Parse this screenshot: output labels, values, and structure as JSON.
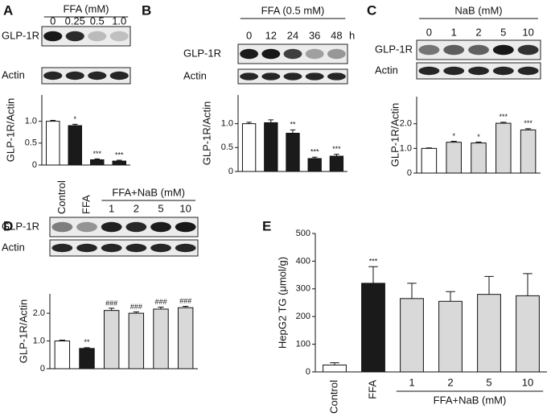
{
  "chart_data": [
    {
      "type": "bar",
      "panel_label": "A",
      "header": "FFA (mM)",
      "categories": [
        "0",
        "0.25",
        "0.5",
        "1.0"
      ],
      "row_labels": [
        "GLP-1R",
        "Actin"
      ],
      "ylabel": "GLP-1R/Actin",
      "values": [
        1.0,
        0.9,
        0.12,
        0.09
      ],
      "errors": [
        0.02,
        0.03,
        0.02,
        0.02
      ],
      "annotations": [
        null,
        "*",
        "***",
        "***"
      ],
      "colors": [
        "#ffffff",
        "#1a1a1a",
        "#1a1a1a",
        "#1a1a1a"
      ],
      "ylim": [
        0,
        1.6
      ],
      "yticks": [
        0,
        0.5,
        {
          "value": 1,
          "label": "1.0"
        }
      ]
    },
    {
      "type": "bar",
      "panel_label": "B",
      "header": "FFA (0.5 mM)",
      "lane_unit": "h",
      "categories": [
        "0",
        "12",
        "24",
        "36",
        "48"
      ],
      "row_labels": [
        "GLP-1R",
        "Actin"
      ],
      "ylabel": "GLP-1R/Actin",
      "values": [
        1.0,
        1.02,
        0.8,
        0.27,
        0.32
      ],
      "errors": [
        0.03,
        0.06,
        0.07,
        0.03,
        0.04
      ],
      "annotations": [
        null,
        null,
        "**",
        "***",
        "***"
      ],
      "colors": [
        "#ffffff",
        "#1a1a1a",
        "#1a1a1a",
        "#1a1a1a",
        "#1a1a1a"
      ],
      "ylim": [
        0,
        1.6
      ],
      "yticks": [
        0,
        0.5,
        {
          "value": 1,
          "label": "1.0"
        }
      ]
    },
    {
      "type": "bar",
      "panel_label": "C",
      "header": "NaB (mM)",
      "categories": [
        "0",
        "1",
        "2",
        "5",
        "10"
      ],
      "row_labels": [
        "GLP-1R",
        "Actin"
      ],
      "ylabel": "GLP-1R/Actin",
      "values": [
        1.0,
        1.25,
        1.22,
        2.02,
        1.75
      ],
      "errors": [
        0.02,
        0.04,
        0.04,
        0.04,
        0.05
      ],
      "annotations": [
        null,
        "*",
        "*",
        "***",
        "***"
      ],
      "colors": [
        "#ffffff",
        "#d9d9d9",
        "#d9d9d9",
        "#d9d9d9",
        "#d9d9d9"
      ],
      "ylim": [
        0,
        3.1
      ],
      "yticks": [
        0,
        {
          "value": 1,
          "label": "1.0"
        },
        {
          "value": 2,
          "label": "2.0"
        }
      ]
    },
    {
      "type": "bar",
      "panel_label": "D",
      "header": "FFA+NaB (mM)",
      "categories": [
        "Control",
        "FFA",
        "1",
        "2",
        "5",
        "10"
      ],
      "row_labels": [
        "GLP-1R",
        "Actin"
      ],
      "ylabel": "GLP-1R/Actin",
      "values": [
        1.0,
        0.73,
        2.1,
        2.0,
        2.15,
        2.2
      ],
      "errors": [
        0.03,
        0.03,
        0.08,
        0.05,
        0.07,
        0.05
      ],
      "annotations": [
        null,
        "**",
        "###",
        "###",
        "###",
        "###"
      ],
      "colors": [
        "#ffffff",
        "#1a1a1a",
        "#d9d9d9",
        "#d9d9d9",
        "#d9d9d9",
        "#d9d9d9"
      ],
      "ylim": [
        0,
        2.7
      ],
      "yticks": [
        0,
        {
          "value": 1,
          "label": "1.0"
        },
        {
          "value": 2,
          "label": "2.0"
        }
      ]
    },
    {
      "type": "bar",
      "panel_label": "E",
      "group_label": "FFA+NaB (mM)",
      "categories": [
        "Control",
        "FFA",
        "1",
        "2",
        "5",
        "10"
      ],
      "ylabel": "HepG2 TG  (μmol/g)",
      "values": [
        25,
        320,
        265,
        255,
        280,
        275
      ],
      "errors": [
        8,
        60,
        55,
        35,
        65,
        80
      ],
      "annotations": [
        null,
        "***",
        null,
        null,
        null,
        null
      ],
      "colors": [
        "#ffffff",
        "#1a1a1a",
        "#d9d9d9",
        "#d9d9d9",
        "#d9d9d9",
        "#d9d9d9"
      ],
      "ylim": [
        0,
        500
      ],
      "yticks": [
        0,
        100,
        200,
        300,
        400,
        500
      ]
    }
  ]
}
